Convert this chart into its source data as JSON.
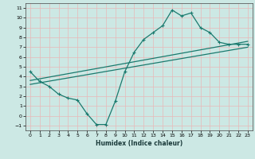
{
  "jagged_x": [
    0,
    1,
    2,
    3,
    4,
    5,
    6,
    7,
    8,
    9,
    10,
    11,
    12,
    13,
    14,
    15,
    16,
    17,
    18,
    19,
    20,
    21,
    22,
    23
  ],
  "jagged_y": [
    4.5,
    3.5,
    3.0,
    2.2,
    1.8,
    1.6,
    0.2,
    -0.9,
    -0.9,
    1.5,
    4.5,
    6.5,
    7.8,
    8.5,
    9.2,
    10.8,
    10.2,
    10.5,
    9.0,
    8.5,
    7.5,
    7.3,
    7.3,
    7.3
  ],
  "line2_x": [
    0,
    23
  ],
  "line2_y": [
    3.6,
    7.6
  ],
  "line3_x": [
    0,
    23
  ],
  "line3_y": [
    3.2,
    7.0
  ],
  "line_color": "#1a7a6e",
  "bg_color": "#cce8e4",
  "grid_minor_color": "#b8d8d4",
  "grid_major_color": "#e8b8b8",
  "xlabel": "Humidex (Indice chaleur)",
  "xlim": [
    -0.5,
    23.5
  ],
  "ylim": [
    -1.5,
    11.5
  ],
  "xticks": [
    0,
    1,
    2,
    3,
    4,
    5,
    6,
    7,
    8,
    9,
    10,
    11,
    12,
    13,
    14,
    15,
    16,
    17,
    18,
    19,
    20,
    21,
    22,
    23
  ],
  "yticks": [
    -1,
    0,
    1,
    2,
    3,
    4,
    5,
    6,
    7,
    8,
    9,
    10,
    11
  ]
}
